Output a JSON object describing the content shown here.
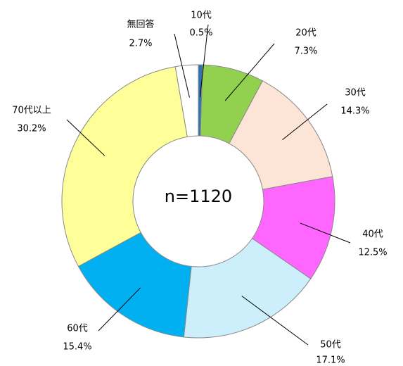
{
  "chart_data": {
    "type": "donut",
    "categories": [
      "10代",
      "20代",
      "30代",
      "40代",
      "50代",
      "60代",
      "70代以上",
      "無回答"
    ],
    "values": [
      0.5,
      7.3,
      14.3,
      12.5,
      17.1,
      15.4,
      30.2,
      2.7
    ],
    "value_labels": [
      "0.5%",
      "7.3%",
      "14.3%",
      "12.5%",
      "17.1%",
      "15.4%",
      "30.2%",
      "2.7%"
    ],
    "colors": [
      "#2e75b6",
      "#92d050",
      "#fce4d6",
      "#ff66ff",
      "#cdeefb",
      "#00b0f0",
      "#ffff99",
      "#ffffff"
    ],
    "annotation": "n=1120"
  }
}
